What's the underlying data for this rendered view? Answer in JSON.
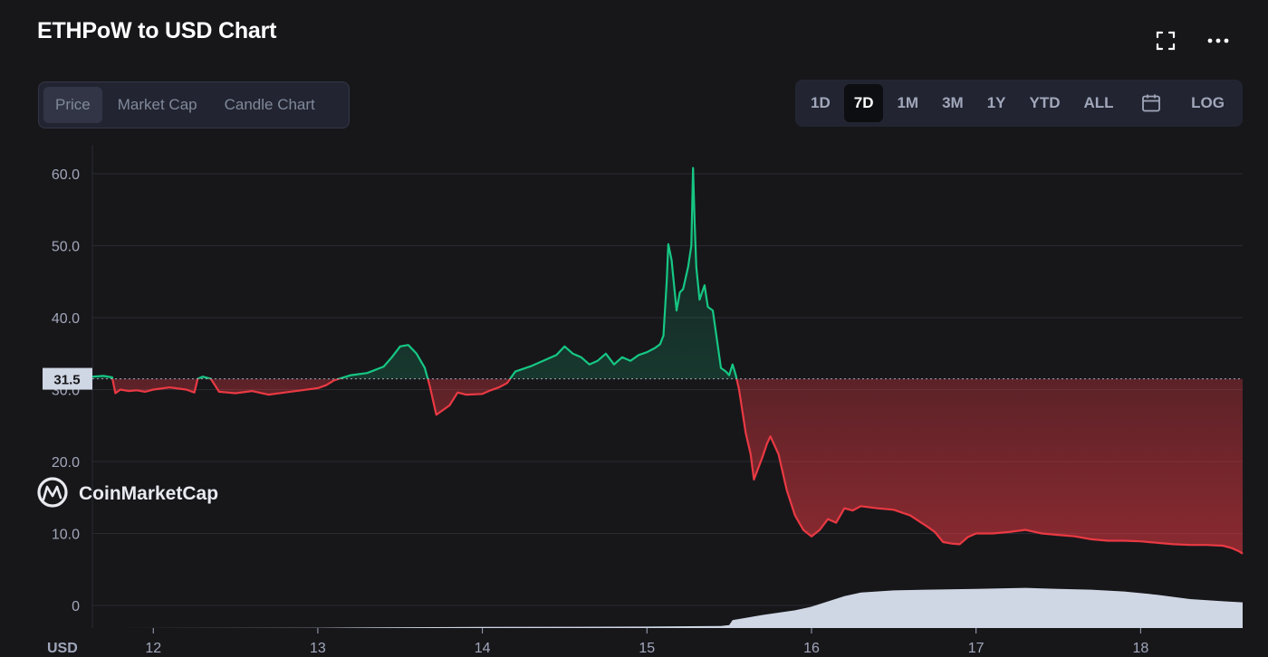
{
  "header": {
    "title": "ETHPoW to USD Chart",
    "fullscreen_icon": "fullscreen-icon",
    "more_icon": "more-horizontal-icon"
  },
  "view_tabs": [
    {
      "label": "Price",
      "active": true
    },
    {
      "label": "Market Cap",
      "active": false
    },
    {
      "label": "Candle Chart",
      "active": false
    }
  ],
  "range_tabs": [
    {
      "label": "1D",
      "active": false
    },
    {
      "label": "7D",
      "active": true
    },
    {
      "label": "1M",
      "active": false
    },
    {
      "label": "3M",
      "active": false
    },
    {
      "label": "1Y",
      "active": false
    },
    {
      "label": "YTD",
      "active": false
    },
    {
      "label": "ALL",
      "active": false
    }
  ],
  "calendar_icon": "calendar-icon",
  "log_label": "LOG",
  "watermark": "CoinMarketCap",
  "colors": {
    "up": "#16c784",
    "down": "#ea3943",
    "volume": "#cfd6e4",
    "grid": "#2a2b32",
    "background": "#17171a"
  },
  "chart_data": {
    "type": "line",
    "currency_label": "USD",
    "baseline": 31.5,
    "current_label": "31.5",
    "ylim": [
      -3,
      63
    ],
    "yticks": [
      0,
      10,
      20,
      30,
      40,
      50,
      60
    ],
    "ytick_labels": [
      "0",
      "10.0",
      "20.0",
      "30.0",
      "40.0",
      "50.0",
      "60.0"
    ],
    "xlim": [
      11.63,
      18.62
    ],
    "xticks": [
      12,
      13,
      14,
      15,
      16,
      17,
      18
    ],
    "xtick_labels": [
      "12",
      "13",
      "14",
      "15",
      "16",
      "17",
      "18"
    ],
    "grid": true,
    "series": [
      {
        "x": [
          11.63,
          11.7,
          11.75,
          11.77,
          11.8,
          11.85,
          11.9,
          11.95,
          12.0,
          12.1,
          12.2,
          12.25,
          12.27,
          12.3,
          12.35,
          12.4,
          12.5,
          12.6,
          12.7,
          12.8,
          12.9,
          13.0,
          13.05,
          13.1,
          13.2,
          13.3,
          13.4,
          13.45,
          13.5,
          13.55,
          13.6,
          13.65,
          13.68,
          13.72,
          13.8,
          13.85,
          13.9,
          14.0,
          14.05,
          14.1,
          14.15,
          14.2,
          14.3,
          14.4,
          14.45,
          14.5,
          14.55,
          14.6,
          14.65,
          14.7,
          14.75,
          14.8,
          14.85,
          14.9,
          14.95,
          15.0,
          15.05,
          15.08,
          15.1,
          15.12,
          15.13,
          15.15,
          15.18,
          15.2,
          15.22,
          15.25,
          15.27,
          15.28,
          15.29,
          15.3,
          15.32,
          15.35,
          15.37,
          15.4,
          15.45,
          15.48,
          15.5,
          15.52,
          15.54,
          15.56,
          15.6,
          15.63,
          15.65,
          15.7,
          15.73,
          15.75,
          15.8,
          15.85,
          15.9,
          15.95,
          16.0,
          16.05,
          16.1,
          16.15,
          16.2,
          16.25,
          16.3,
          16.4,
          16.5,
          16.6,
          16.7,
          16.75,
          16.8,
          16.85,
          16.9,
          16.95,
          17.0,
          17.1,
          17.2,
          17.3,
          17.4,
          17.5,
          17.6,
          17.7,
          17.8,
          17.9,
          18.0,
          18.1,
          18.2,
          18.3,
          18.4,
          18.5,
          18.55,
          18.6,
          18.62
        ],
        "y": [
          31.8,
          31.9,
          31.7,
          29.5,
          30.0,
          29.8,
          29.9,
          29.7,
          30.0,
          30.3,
          30.0,
          29.6,
          31.5,
          31.8,
          31.5,
          29.7,
          29.5,
          29.8,
          29.3,
          29.6,
          29.9,
          30.2,
          30.6,
          31.3,
          32.0,
          32.3,
          33.2,
          34.5,
          36.0,
          36.2,
          35.0,
          33.0,
          30.5,
          26.5,
          27.8,
          29.6,
          29.3,
          29.4,
          29.9,
          30.3,
          30.9,
          32.5,
          33.3,
          34.3,
          34.8,
          36.0,
          35.0,
          34.5,
          33.5,
          34.0,
          35.0,
          33.5,
          34.5,
          34.0,
          34.8,
          35.2,
          35.8,
          36.3,
          37.5,
          45.0,
          50.2,
          48.0,
          41.0,
          43.5,
          44.0,
          47.0,
          50.0,
          60.8,
          53.0,
          47.0,
          42.5,
          44.5,
          41.5,
          41.0,
          33.0,
          32.5,
          32.0,
          33.5,
          32.0,
          30.0,
          24.0,
          21.0,
          17.5,
          20.5,
          22.5,
          23.5,
          21.0,
          16.0,
          12.5,
          10.5,
          9.6,
          10.5,
          12.0,
          11.5,
          13.5,
          13.2,
          13.8,
          13.5,
          13.3,
          12.5,
          11.0,
          10.2,
          8.8,
          8.6,
          8.5,
          9.5,
          10.0,
          10.0,
          10.2,
          10.5,
          10.0,
          9.8,
          9.6,
          9.2,
          9.0,
          9.0,
          8.9,
          8.7,
          8.5,
          8.4,
          8.4,
          8.3,
          8.0,
          7.5,
          7.2
        ]
      }
    ],
    "volume": {
      "x": [
        11.63,
        13.0,
        13.4,
        14.0,
        15.0,
        15.45,
        15.5,
        15.52,
        15.7,
        15.9,
        16.0,
        16.2,
        16.3,
        16.5,
        16.7,
        17.0,
        17.3,
        17.5,
        17.7,
        17.9,
        18.1,
        18.3,
        18.5,
        18.62
      ],
      "y": [
        0.0,
        0.05,
        0.2,
        0.3,
        0.4,
        0.55,
        0.8,
        2.2,
        3.6,
        4.9,
        5.9,
        8.8,
        9.8,
        10.4,
        10.6,
        10.8,
        11.1,
        10.8,
        10.6,
        10.1,
        9.2,
        8.0,
        7.4,
        7.1
      ]
    }
  }
}
